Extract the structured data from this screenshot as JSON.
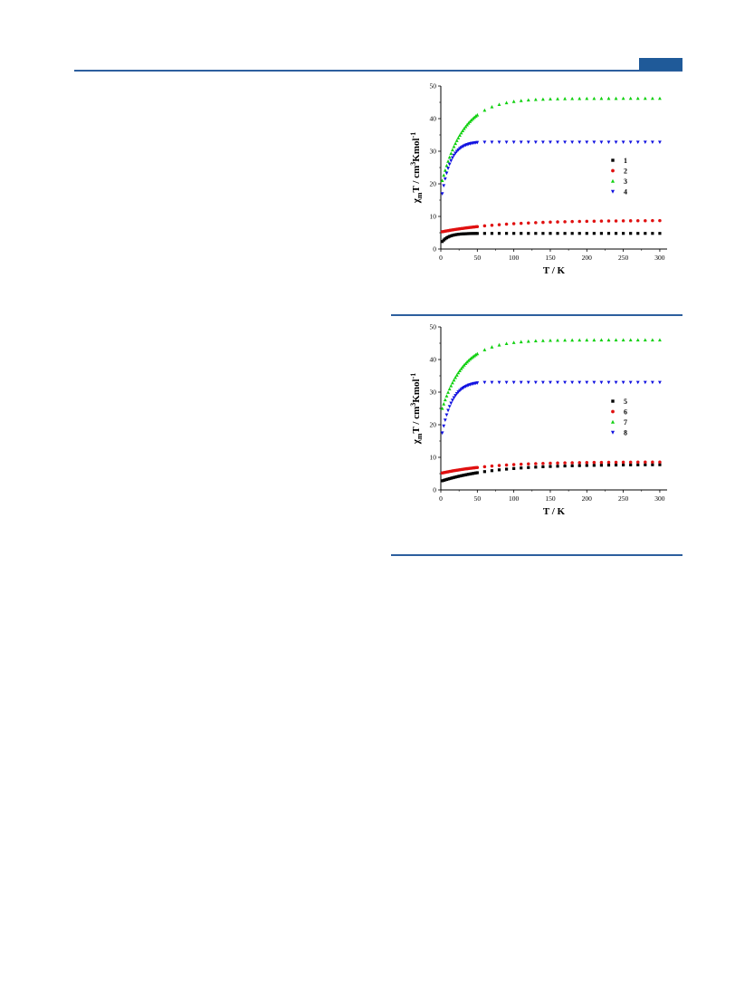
{
  "colors": {
    "header": "#1f5a99",
    "rule": "#2d5f9e"
  },
  "chart_data": [
    {
      "type": "scatter",
      "xlabel": "T / K",
      "ylabel_parts": [
        "χ",
        "m",
        "T / cm",
        "3",
        "Kmol",
        "-1"
      ],
      "xlim": [
        0,
        310
      ],
      "ylim": [
        0,
        50
      ],
      "xticks": [
        0,
        50,
        100,
        150,
        200,
        250,
        300
      ],
      "yticks": [
        0,
        10,
        20,
        30,
        40,
        50
      ],
      "legend_position": "right",
      "series": [
        {
          "name": "1",
          "color": "#000000",
          "marker": "square",
          "plateau": 4.8,
          "low": 2.3,
          "tau": 10
        },
        {
          "name": "2",
          "color": "#e01010",
          "marker": "circle",
          "plateau": 8.8,
          "low": 5.3,
          "tau": 80
        },
        {
          "name": "3",
          "color": "#10d010",
          "marker": "triangle-up",
          "plateau": 46.2,
          "low": 21.0,
          "tau": 30
        },
        {
          "name": "4",
          "color": "#1010e0",
          "marker": "triangle-down",
          "plateau": 32.8,
          "low": 17.0,
          "tau": 12,
          "cutoff": 55
        }
      ]
    },
    {
      "type": "scatter",
      "xlabel": "T / K",
      "ylabel_parts": [
        "χ",
        "m",
        "T / cm",
        "3",
        "Kmol",
        "-1"
      ],
      "xlim": [
        0,
        310
      ],
      "ylim": [
        0,
        50
      ],
      "xticks": [
        0,
        50,
        100,
        150,
        200,
        250,
        300
      ],
      "yticks": [
        0,
        10,
        20,
        30,
        40,
        50
      ],
      "legend_position": "right",
      "series": [
        {
          "name": "5",
          "color": "#000000",
          "marker": "square",
          "plateau": 7.8,
          "low": 2.8,
          "tau": 70
        },
        {
          "name": "6",
          "color": "#e01010",
          "marker": "circle",
          "plateau": 8.6,
          "low": 5.2,
          "tau": 70
        },
        {
          "name": "7",
          "color": "#10d010",
          "marker": "triangle-up",
          "plateau": 46.0,
          "low": 25.0,
          "tau": 30
        },
        {
          "name": "8",
          "color": "#1010e0",
          "marker": "triangle-down",
          "plateau": 33.0,
          "low": 17.5,
          "tau": 14,
          "cutoff": 55
        }
      ]
    }
  ]
}
